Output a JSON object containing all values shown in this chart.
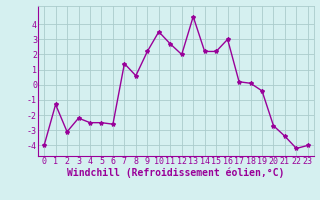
{
  "x": [
    0,
    1,
    2,
    3,
    4,
    5,
    6,
    7,
    8,
    9,
    10,
    11,
    12,
    13,
    14,
    15,
    16,
    17,
    18,
    19,
    20,
    21,
    22,
    23
  ],
  "y": [
    -4.0,
    -1.3,
    -3.1,
    -2.2,
    -2.5,
    -2.5,
    -2.6,
    1.4,
    0.6,
    2.2,
    3.5,
    2.7,
    2.0,
    4.5,
    2.2,
    2.2,
    3.0,
    0.2,
    0.1,
    -0.4,
    -2.7,
    -3.4,
    -4.2,
    -4.0
  ],
  "line_color": "#990099",
  "marker": "*",
  "marker_size": 3,
  "bg_color": "#d5f0f0",
  "grid_color": "#aacccc",
  "xlabel": "Windchill (Refroidissement éolien,°C)",
  "xlabel_fontsize": 7,
  "ylim": [
    -4.7,
    5.2
  ],
  "xlim": [
    -0.5,
    23.5
  ],
  "yticks": [
    -4,
    -3,
    -2,
    -1,
    0,
    1,
    2,
    3,
    4
  ],
  "xticks": [
    0,
    1,
    2,
    3,
    4,
    5,
    6,
    7,
    8,
    9,
    10,
    11,
    12,
    13,
    14,
    15,
    16,
    17,
    18,
    19,
    20,
    21,
    22,
    23
  ],
  "tick_fontsize": 6,
  "line_width": 1.0
}
